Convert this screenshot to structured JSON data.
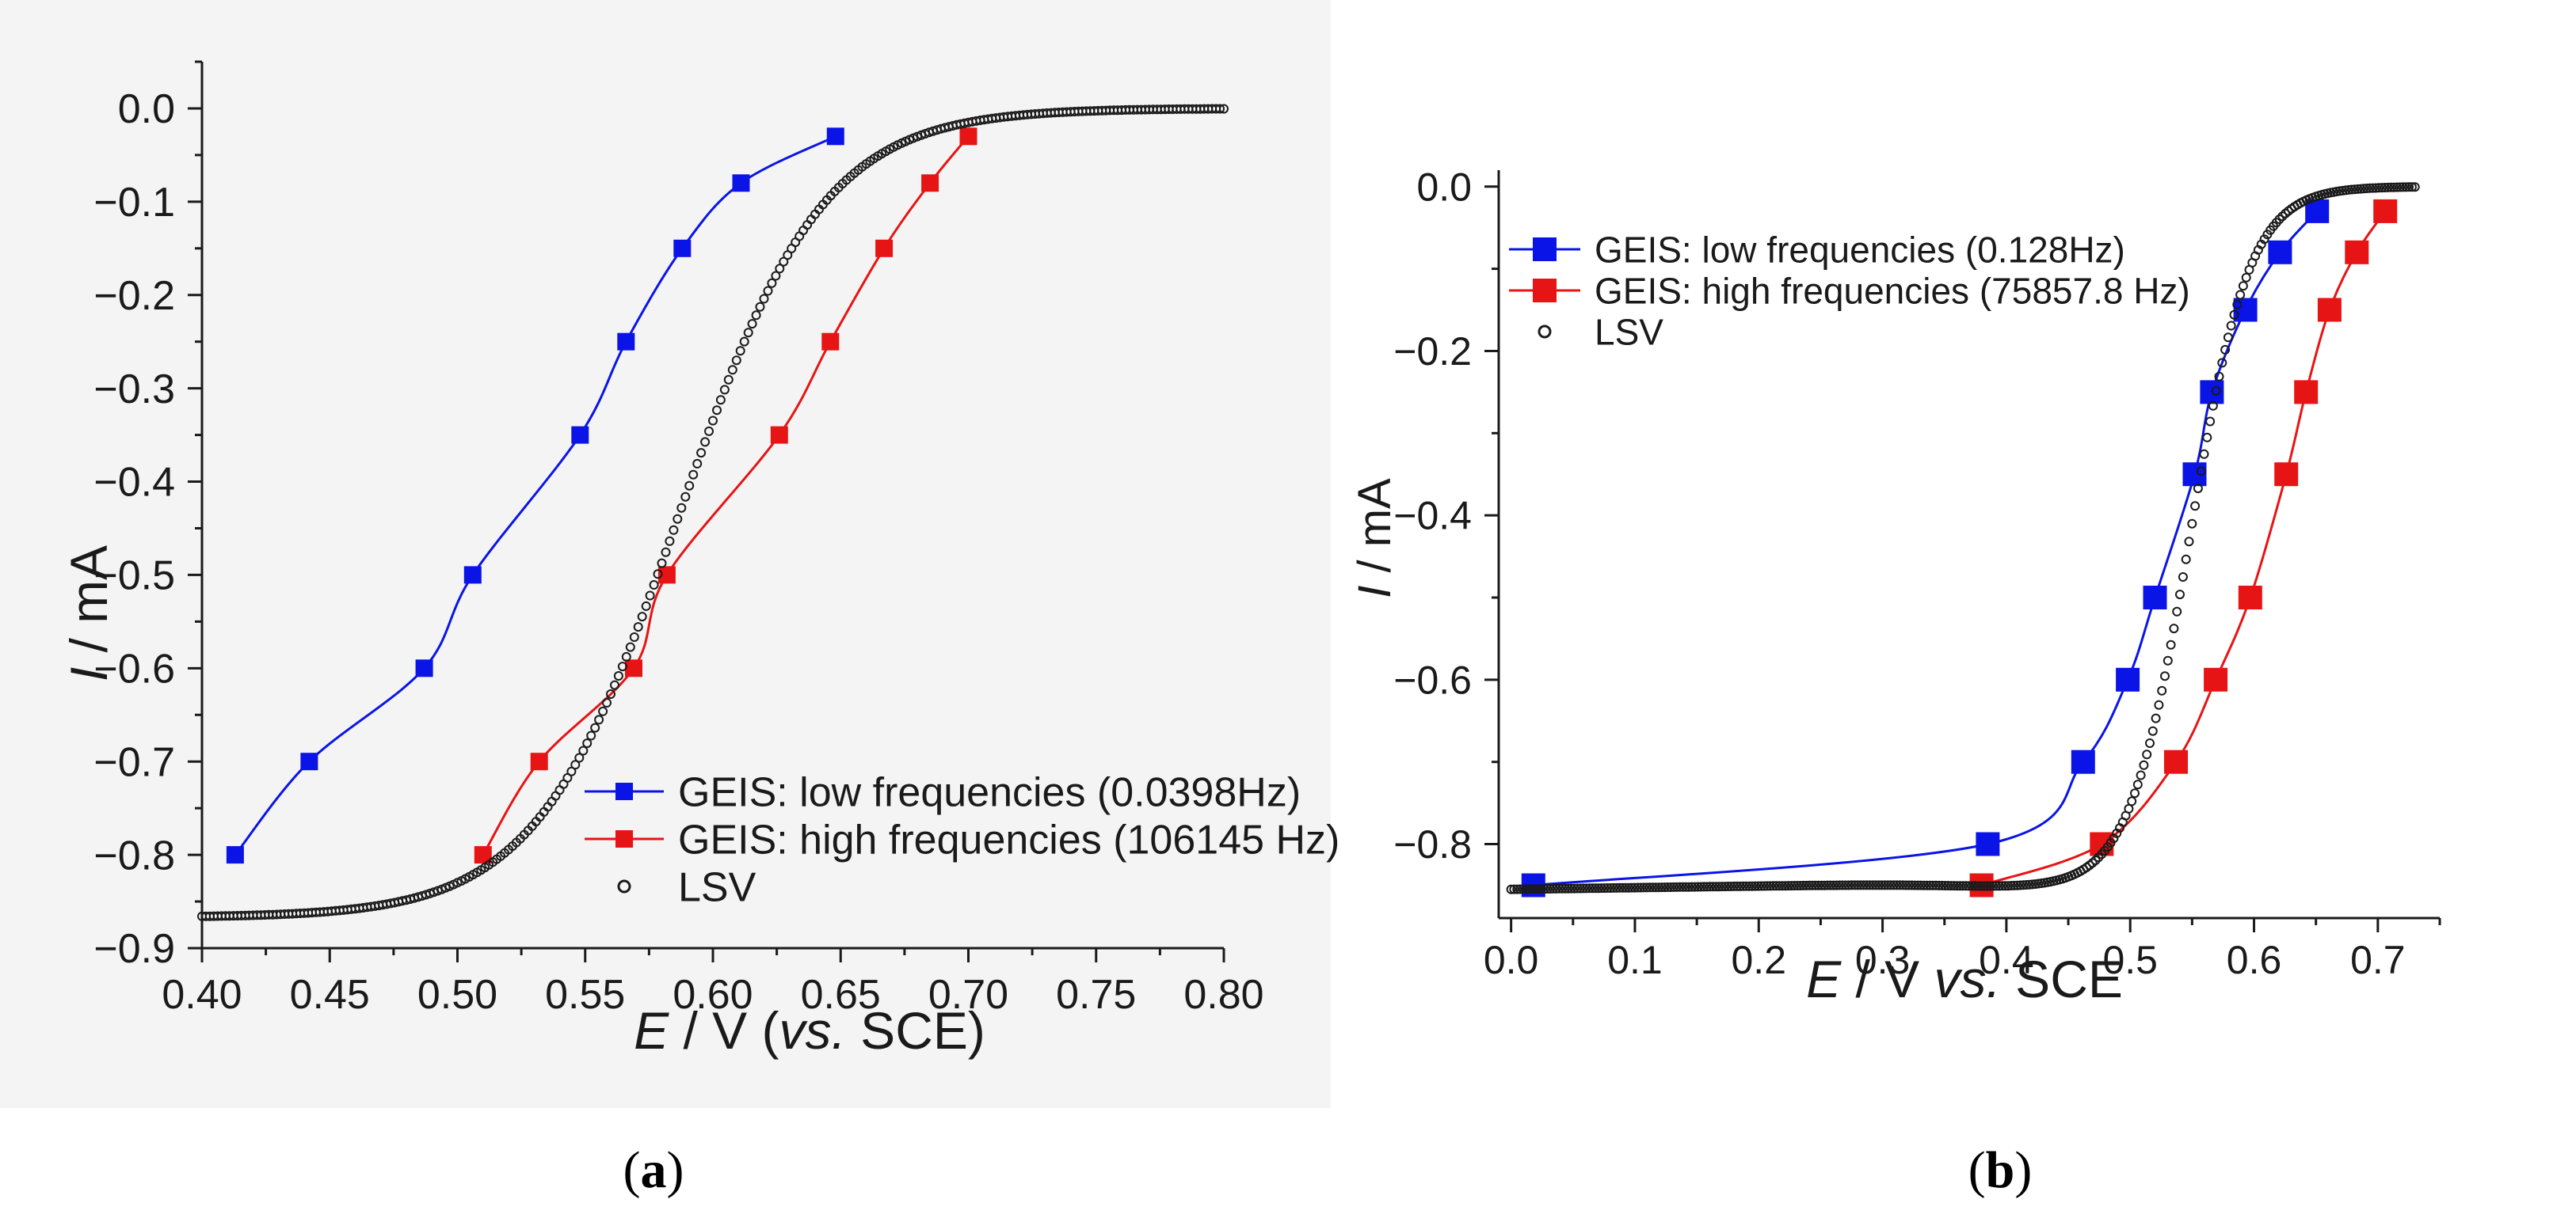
{
  "colors": {
    "low": "#0a14e6",
    "high": "#e61414",
    "lsv": "#1a1a1a",
    "axis": "#1a1a1a",
    "panel_a_bg": "#f4f4f4",
    "panel_b_bg": "#ffffff"
  },
  "chart_data": [
    {
      "type": "scatter",
      "caption_open": "(",
      "caption_letter": "a",
      "caption_close": ")",
      "xlabel": {
        "var": "E",
        "unit": " / V (",
        "italic": "vs.",
        "ref": " SCE)"
      },
      "ylabel": {
        "var": "I",
        "unit": " / mA"
      },
      "xlim": [
        0.4,
        0.8
      ],
      "ylim": [
        -0.9,
        0.05
      ],
      "xticks": [
        "0.40",
        "0.45",
        "0.50",
        "0.55",
        "0.60",
        "0.65",
        "0.70",
        "0.75",
        "0.80"
      ],
      "yticks": [
        "0.0",
        "−0.1",
        "−0.2",
        "−0.3",
        "−0.4",
        "−0.5",
        "−0.6",
        "−0.7",
        "−0.8",
        "−0.9"
      ],
      "grid": false,
      "legend_position": "bottom-right",
      "series": [
        {
          "name": "GEIS: low frequencies (0.0398Hz)",
          "key": "low",
          "marker": "square",
          "line": true,
          "x": [
            0.413,
            0.442,
            0.487,
            0.506,
            0.548,
            0.566,
            0.588,
            0.611,
            0.648
          ],
          "y": [
            -0.8,
            -0.7,
            -0.6,
            -0.5,
            -0.35,
            -0.25,
            -0.15,
            -0.08,
            -0.03
          ]
        },
        {
          "name": "GEIS: high frequencies (106145 Hz)",
          "key": "high",
          "marker": "square",
          "line": true,
          "x": [
            0.51,
            0.532,
            0.569,
            0.582,
            0.626,
            0.646,
            0.667,
            0.685,
            0.7
          ],
          "y": [
            -0.8,
            -0.7,
            -0.6,
            -0.5,
            -0.35,
            -0.25,
            -0.15,
            -0.08,
            -0.03
          ]
        },
        {
          "name": "LSV",
          "key": "lsv",
          "marker": "circle-open",
          "line": false,
          "curve": {
            "E_half": 0.587,
            "k": 0.028,
            "i_lim": -0.867
          },
          "x_range": [
            0.4,
            0.8
          ]
        }
      ]
    },
    {
      "type": "scatter",
      "caption_open": "(",
      "caption_letter": "b",
      "caption_close": ")",
      "xlabel": {
        "var": "E",
        "unit": " / V ",
        "italic": "vs.",
        "ref": " SCE"
      },
      "ylabel": {
        "var": "I",
        "unit": " / mA"
      },
      "xlim": [
        -0.01,
        0.75
      ],
      "ylim": [
        -0.89,
        0.02
      ],
      "xticks": [
        "0.0",
        "0.1",
        "0.2",
        "0.3",
        "0.4",
        "0.5",
        "0.6",
        "0.7"
      ],
      "yticks": [
        "0.0",
        "−0.2",
        "−0.4",
        "−0.6",
        "−0.8"
      ],
      "grid": false,
      "legend_position": "top-left",
      "series": [
        {
          "name": "GEIS: low frequencies (0.128Hz)",
          "key": "low",
          "marker": "square",
          "line": true,
          "x": [
            0.018,
            0.385,
            0.462,
            0.498,
            0.52,
            0.552,
            0.566,
            0.593,
            0.621,
            0.651
          ],
          "y": [
            -0.85,
            -0.8,
            -0.7,
            -0.6,
            -0.5,
            -0.35,
            -0.25,
            -0.15,
            -0.08,
            -0.03
          ]
        },
        {
          "name": "GEIS: high frequencies (75857.8 Hz)",
          "key": "high",
          "marker": "square",
          "line": true,
          "x": [
            0.38,
            0.477,
            0.537,
            0.569,
            0.597,
            0.626,
            0.642,
            0.661,
            0.683,
            0.706
          ],
          "y": [
            -0.85,
            -0.8,
            -0.7,
            -0.6,
            -0.5,
            -0.35,
            -0.25,
            -0.15,
            -0.08,
            -0.03
          ]
        },
        {
          "name": "LSV",
          "key": "lsv",
          "marker": "circle-open",
          "line": false,
          "curve": {
            "E_half": 0.548,
            "k": 0.024,
            "i_lim": -0.855,
            "slope": 0.05
          },
          "x_range": [
            0.0,
            0.73
          ]
        }
      ]
    }
  ]
}
